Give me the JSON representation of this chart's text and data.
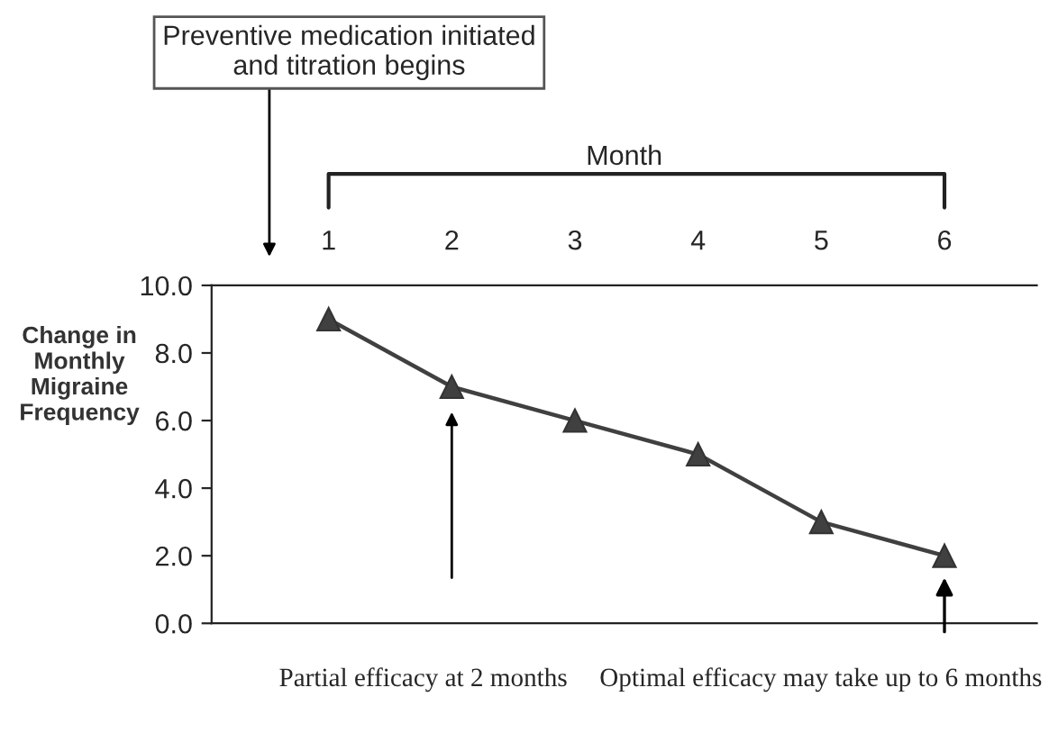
{
  "chart_data": {
    "type": "line",
    "xlabel": "Month",
    "ylabel": "Change in\nMonthly\nMigraine\nFrequency",
    "x": [
      1,
      2,
      3,
      4,
      5,
      6
    ],
    "series": [
      {
        "color": "#404040",
        "values": [
          9.0,
          7.0,
          6.0,
          5.0,
          3.0,
          2.0
        ]
      }
    ],
    "marker": "triangle",
    "xlim": [
      0.05,
      6.75
    ],
    "xticks": [
      1,
      2,
      3,
      4,
      5,
      6
    ],
    "ylim": [
      0,
      10
    ],
    "yticks": [
      {
        "value": 0,
        "label": "0.0"
      },
      {
        "value": 2,
        "label": "2.0"
      },
      {
        "value": 4,
        "label": "4.0"
      },
      {
        "value": 6,
        "label": "6.0"
      },
      {
        "value": 8,
        "label": "8.0"
      },
      {
        "value": 10,
        "label": "10.0"
      }
    ],
    "grid": false,
    "annotations": [
      "Preventive medication initiated\nand titration begins",
      "Partial efficacy at 2 months",
      "Optimal efficacy may take up to 6 months"
    ]
  }
}
